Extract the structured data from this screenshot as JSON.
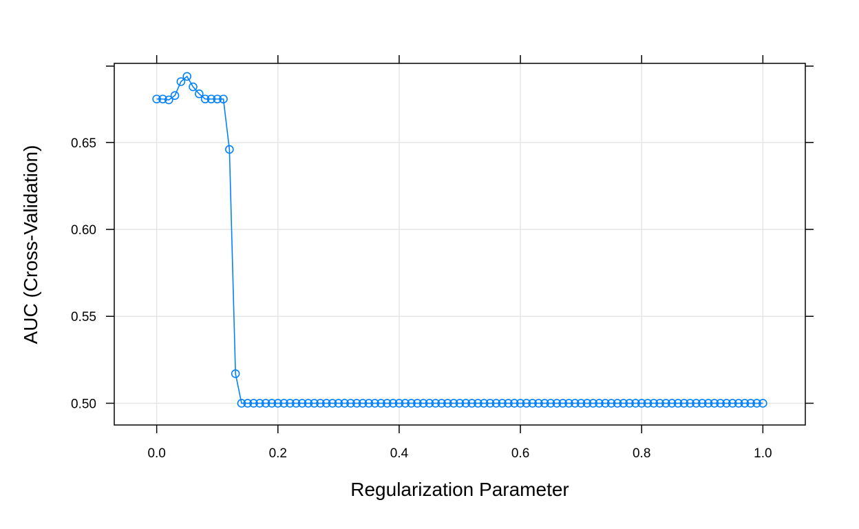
{
  "chart_data": {
    "type": "line",
    "title": "",
    "xlabel": "Regularization Parameter",
    "ylabel": "AUC (Cross-Validation)",
    "xlim": [
      -0.07,
      1.07
    ],
    "ylim": [
      0.4875,
      0.6955
    ],
    "xticks": [
      0.0,
      0.2,
      0.4,
      0.6,
      0.8,
      1.0
    ],
    "xtick_labels": [
      "0.0",
      "0.2",
      "0.4",
      "0.6",
      "0.8",
      "1.0"
    ],
    "yticks": [
      0.5,
      0.55,
      0.6,
      0.65
    ],
    "ytick_labels": [
      "0.50",
      "0.55",
      "0.60",
      "0.65"
    ],
    "grid": true,
    "legend": "none",
    "series": [
      {
        "color": "#0080ff",
        "marker": "open-circle",
        "x": [
          0.0,
          0.01,
          0.02,
          0.03,
          0.04,
          0.05,
          0.06,
          0.07,
          0.08,
          0.09,
          0.1,
          0.11,
          0.12,
          0.13,
          0.14,
          0.15,
          0.16,
          0.17,
          0.18,
          0.19,
          0.2,
          0.21,
          0.22,
          0.23,
          0.24,
          0.25,
          0.26,
          0.27,
          0.28,
          0.29,
          0.3,
          0.31,
          0.32,
          0.33,
          0.34,
          0.35,
          0.36,
          0.37,
          0.38,
          0.39,
          0.4,
          0.41,
          0.42,
          0.43,
          0.44,
          0.45,
          0.46,
          0.47,
          0.48,
          0.49,
          0.5,
          0.51,
          0.52,
          0.53,
          0.54,
          0.55,
          0.56,
          0.57,
          0.58,
          0.59,
          0.6,
          0.61,
          0.62,
          0.63,
          0.64,
          0.65,
          0.66,
          0.67,
          0.68,
          0.69,
          0.7,
          0.71,
          0.72,
          0.73,
          0.74,
          0.75,
          0.76,
          0.77,
          0.78,
          0.79,
          0.8,
          0.81,
          0.82,
          0.83,
          0.84,
          0.85,
          0.86,
          0.87,
          0.88,
          0.89,
          0.9,
          0.91,
          0.92,
          0.93,
          0.94,
          0.95,
          0.96,
          0.97,
          0.98,
          0.99,
          1.0
        ],
        "y": [
          0.675,
          0.675,
          0.6745,
          0.677,
          0.685,
          0.688,
          0.682,
          0.678,
          0.675,
          0.675,
          0.675,
          0.675,
          0.646,
          0.517,
          0.5,
          0.5,
          0.5,
          0.5,
          0.5,
          0.5,
          0.5,
          0.5,
          0.5,
          0.5,
          0.5,
          0.5,
          0.5,
          0.5,
          0.5,
          0.5,
          0.5,
          0.5,
          0.5,
          0.5,
          0.5,
          0.5,
          0.5,
          0.5,
          0.5,
          0.5,
          0.5,
          0.5,
          0.5,
          0.5,
          0.5,
          0.5,
          0.5,
          0.5,
          0.5,
          0.5,
          0.5,
          0.5,
          0.5,
          0.5,
          0.5,
          0.5,
          0.5,
          0.5,
          0.5,
          0.5,
          0.5,
          0.5,
          0.5,
          0.5,
          0.5,
          0.5,
          0.5,
          0.5,
          0.5,
          0.5,
          0.5,
          0.5,
          0.5,
          0.5,
          0.5,
          0.5,
          0.5,
          0.5,
          0.5,
          0.5,
          0.5,
          0.5,
          0.5,
          0.5,
          0.5,
          0.5,
          0.5,
          0.5,
          0.5,
          0.5,
          0.5,
          0.5,
          0.5,
          0.5,
          0.5,
          0.5,
          0.5,
          0.5,
          0.5,
          0.5,
          0.5
        ]
      }
    ]
  }
}
